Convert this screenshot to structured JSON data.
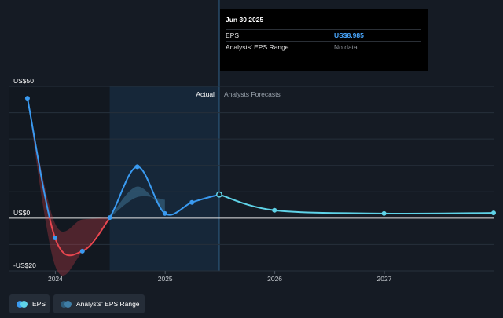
{
  "tooltip": {
    "date": "Jun 30 2025",
    "rows": [
      {
        "label": "EPS",
        "value": "US$8.985"
      },
      {
        "label": "Analysts' EPS Range",
        "value": "No data"
      }
    ]
  },
  "legend": {
    "eps_label": "EPS",
    "range_label": "Analysts' EPS Range"
  },
  "colors": {
    "background": "#151b24",
    "eps_positive": "#3a9af0",
    "eps_negative": "#e8464f",
    "forecast": "#5fd3e8",
    "range_fill": "#3a6a8a",
    "forecast_band": "#17324a",
    "past_band": "#121820"
  },
  "chart_data": {
    "type": "line",
    "title": "",
    "y_tick_labels": [
      "US$50",
      "US$0",
      "-US$20"
    ],
    "x_tick_labels": [
      "2024",
      "2025",
      "2026",
      "2027"
    ],
    "region_labels": {
      "actual": "Actual",
      "forecast": "Analysts Forecasts"
    },
    "ylim": [
      -20,
      50
    ],
    "xlim": [
      "2023-08-01",
      "2027-12-31"
    ],
    "grid": true,
    "series": [
      {
        "name": "EPS",
        "points": [
          {
            "x": "2023-09-30",
            "y": 45.5
          },
          {
            "x": "2023-12-31",
            "y": -7.5
          },
          {
            "x": "2024-03-31",
            "y": -12.5
          },
          {
            "x": "2024-06-30",
            "y": 0.2
          },
          {
            "x": "2024-09-30",
            "y": 19.5
          },
          {
            "x": "2024-12-31",
            "y": 1.8
          },
          {
            "x": "2025-03-31",
            "y": 6.0
          },
          {
            "x": "2025-06-30",
            "y": 8.985
          }
        ]
      },
      {
        "name": "Forecast",
        "points": [
          {
            "x": "2025-06-30",
            "y": 8.985
          },
          {
            "x": "2025-12-31",
            "y": 3.0
          },
          {
            "x": "2026-12-31",
            "y": 1.8
          },
          {
            "x": "2027-12-31",
            "y": 2.0
          }
        ]
      }
    ],
    "range_band": {
      "name": "Analysts' EPS Range",
      "upper": [
        {
          "x": "2023-09-30",
          "y": 45.5
        },
        {
          "x": "2023-12-31",
          "y": -2.0
        },
        {
          "x": "2024-03-31",
          "y": -0.5
        },
        {
          "x": "2024-06-30",
          "y": 0.2
        },
        {
          "x": "2024-09-30",
          "y": 8.0
        },
        {
          "x": "2024-12-31",
          "y": 7.0
        }
      ],
      "lower": [
        {
          "x": "2023-09-30",
          "y": 45.5
        },
        {
          "x": "2023-12-31",
          "y": -18.0
        },
        {
          "x": "2024-03-31",
          "y": -13.0
        },
        {
          "x": "2024-06-30",
          "y": 0.2
        },
        {
          "x": "2024-09-30",
          "y": 12.0
        },
        {
          "x": "2024-12-31",
          "y": 1.8
        }
      ]
    }
  }
}
